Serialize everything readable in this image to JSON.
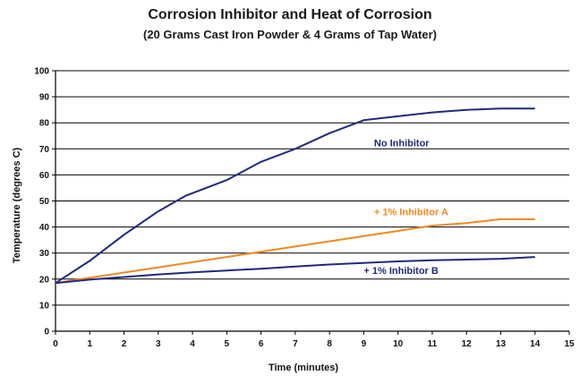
{
  "chart_data": {
    "type": "line",
    "title": "Corrosion Inhibitor and Heat of Corrosion",
    "subtitle": "(20 Grams Cast Iron Powder & 4 Grams of Tap Water)",
    "xlabel": "Time (minutes)",
    "ylabel": "Temperature (degrees C)",
    "xlim": [
      0,
      15
    ],
    "ylim": [
      0,
      100
    ],
    "xticks": [
      0,
      1,
      2,
      3,
      4,
      5,
      6,
      7,
      8,
      9,
      10,
      11,
      12,
      13,
      14,
      15
    ],
    "yticks": [
      0,
      10,
      20,
      30,
      40,
      50,
      60,
      70,
      80,
      90,
      100
    ],
    "grid": "horizontal",
    "legend": "inline labels",
    "series": [
      {
        "name": "No Inhibitor",
        "color": "#1f2a7a",
        "x": [
          0,
          1,
          2,
          3,
          3.8,
          5,
          6,
          7,
          8,
          9,
          10,
          11,
          12,
          13,
          14
        ],
        "y": [
          18.5,
          27,
          37,
          46,
          52,
          58,
          65,
          70,
          76,
          81,
          82.5,
          84,
          85,
          85.5,
          85.5
        ]
      },
      {
        "name": "+ 1% Inhibitor A",
        "color": "#f08a1e",
        "x": [
          0,
          1,
          2,
          3,
          4,
          5,
          6,
          7,
          8,
          9,
          10,
          11,
          12,
          13,
          14
        ],
        "y": [
          18.5,
          20.5,
          22.5,
          24.5,
          26.5,
          28.5,
          30.5,
          32.5,
          34.5,
          36.5,
          38.5,
          40.5,
          41.5,
          43,
          43
        ]
      },
      {
        "name": "+ 1% Inhibitor B",
        "color": "#1f2a7a",
        "x": [
          0,
          1,
          2,
          3,
          4,
          5,
          6,
          7,
          8,
          9,
          10,
          11,
          12,
          13,
          14
        ],
        "y": [
          18.5,
          19.8,
          20.8,
          21.8,
          22.6,
          23.3,
          24.0,
          24.8,
          25.6,
          26.2,
          26.8,
          27.2,
          27.5,
          27.8,
          28.5
        ]
      }
    ]
  }
}
